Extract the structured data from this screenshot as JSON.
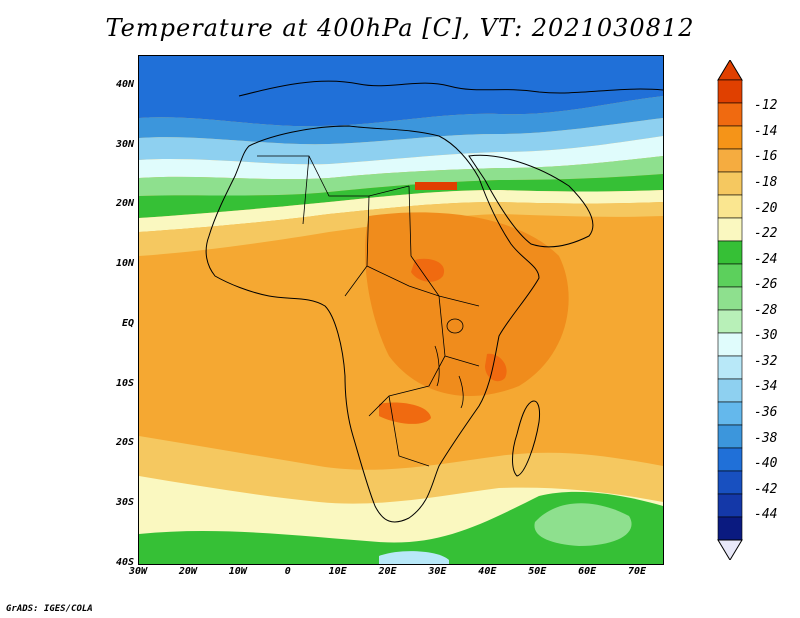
{
  "title": "Temperature at 400hPa [C], VT: 2021030812",
  "credit": "GrADS: IGES/COLA",
  "map": {
    "lon_range": [
      -30,
      75
    ],
    "lat_range": [
      -40,
      45
    ],
    "lon_ticks": [
      "30W",
      "20W",
      "10W",
      "0",
      "10E",
      "20E",
      "30E",
      "40E",
      "50E",
      "60E",
      "70E"
    ],
    "lat_ticks": [
      "40N",
      "30N",
      "20N",
      "10N",
      "EQ",
      "10S",
      "20S",
      "30S",
      "40S"
    ]
  },
  "colorbar": {
    "labels": [
      "-12",
      "-14",
      "-16",
      "-18",
      "-20",
      "-22",
      "-24",
      "-26",
      "-28",
      "-30",
      "-32",
      "-34",
      "-36",
      "-38",
      "-40",
      "-42",
      "-44"
    ],
    "colors": [
      "#e04000",
      "#f06a10",
      "#f59418",
      "#f5ac40",
      "#f5c860",
      "#fae690",
      "#faf8c0",
      "#36c036",
      "#5cd05c",
      "#8ee08e",
      "#b8f0b8",
      "#e0fcfc",
      "#b8e8f8",
      "#8ed0f0",
      "#64b8ec",
      "#3c96dc",
      "#2070d8",
      "#1850c0",
      "#1438a8",
      "#0a1a80"
    ],
    "top_arrow_color": "#e04000",
    "bottom_arrow_color": "#e8e8f8"
  }
}
